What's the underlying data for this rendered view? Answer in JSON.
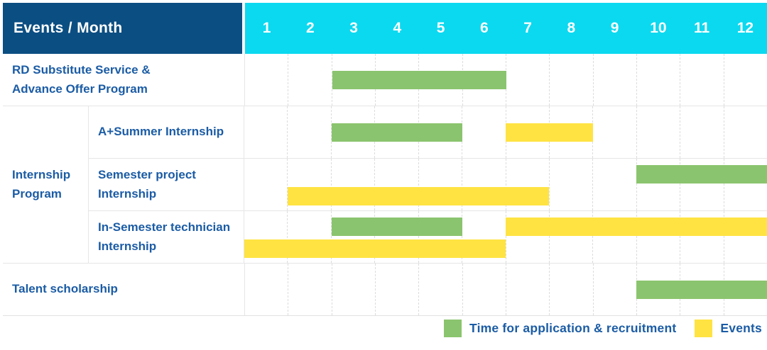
{
  "title": "Events / Month",
  "months": [
    "1",
    "2",
    "3",
    "4",
    "5",
    "6",
    "7",
    "8",
    "9",
    "10",
    "11",
    "12"
  ],
  "colors": {
    "header_bg": "#0B4E82",
    "months_bg": "#0BD9F0",
    "application": "#8BC46E",
    "event": "#FFE342",
    "text_blue": "#1B5CA5",
    "header_text": "#FFFFFF"
  },
  "legend": {
    "items": [
      {
        "swatch": "application",
        "label": "Time for application & recruitment"
      },
      {
        "swatch": "event",
        "label": "Events"
      }
    ]
  },
  "chart_data": {
    "type": "gantt",
    "title": "Events / Month",
    "x_axis": {
      "unit": "month",
      "ticks": [
        "1",
        "2",
        "3",
        "4",
        "5",
        "6",
        "7",
        "8",
        "9",
        "10",
        "11",
        "12"
      ],
      "range": [
        1,
        12
      ],
      "grid": "dashed-vertical"
    },
    "legend_entries": [
      {
        "name": "Time for application & recruitment",
        "color": "#8BC46E"
      },
      {
        "name": "Events",
        "color": "#FFE342"
      }
    ],
    "rows": [
      {
        "group": "",
        "label": "RD Substitute Service & Advance Offer Program",
        "bars": [
          {
            "kind": "application",
            "start": 3,
            "end": 6,
            "lane": "center"
          }
        ]
      },
      {
        "group": "Internship Program",
        "label": "A+Summer Internship",
        "bars": [
          {
            "kind": "application",
            "start": 3,
            "end": 5,
            "lane": "center"
          },
          {
            "kind": "event",
            "start": 7,
            "end": 8,
            "lane": "center"
          }
        ]
      },
      {
        "group": "Internship Program",
        "label": "Semester project Internship",
        "bars": [
          {
            "kind": "application",
            "start": 10,
            "end": 12,
            "lane": "top"
          },
          {
            "kind": "event",
            "start": 2,
            "end": 7,
            "lane": "bottom"
          }
        ]
      },
      {
        "group": "Internship Program",
        "label": "In-Semester technician Internship",
        "bars": [
          {
            "kind": "application",
            "start": 3,
            "end": 5,
            "lane": "top"
          },
          {
            "kind": "event",
            "start": 7,
            "end": 12,
            "lane": "top"
          },
          {
            "kind": "event",
            "start": 1,
            "end": 6,
            "lane": "bottom"
          }
        ]
      },
      {
        "group": "",
        "label": "Talent scholarship",
        "bars": [
          {
            "kind": "application",
            "start": 10,
            "end": 12,
            "lane": "center"
          }
        ]
      }
    ]
  }
}
